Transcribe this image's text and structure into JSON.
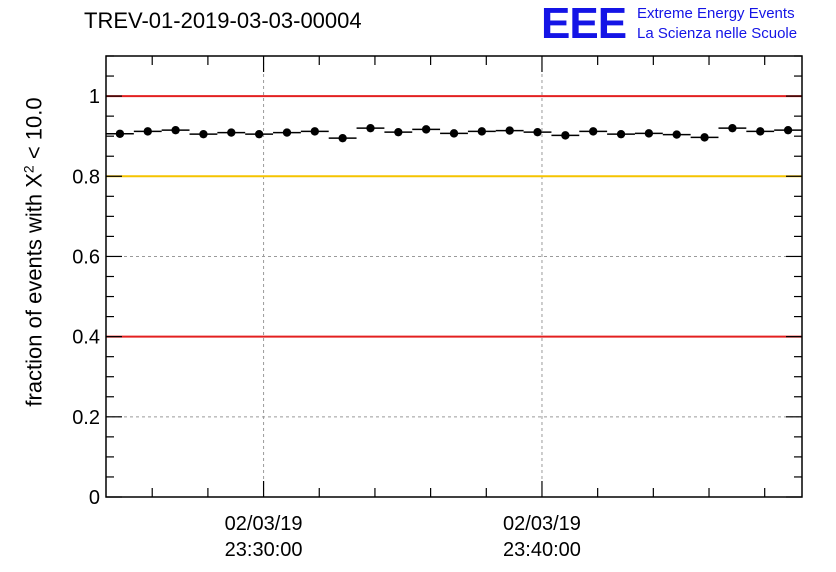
{
  "header": {
    "title": "TREV-01-2019-03-03-00004",
    "logo_mark": "EEE",
    "logo_line1": "Extreme Energy Events",
    "logo_line2": "La Scienza nelle Scuole"
  },
  "axes": {
    "ylabel_prefix": "fraction of events with X",
    "ylabel_sup": "2",
    "ylabel_suffix": " < 10.0"
  },
  "colors": {
    "threshold_red": "#e32020",
    "threshold_yellow": "#f5c400",
    "logo_blue": "#1414e6"
  },
  "chart_data": {
    "type": "scatter",
    "title": "TREV-01-2019-03-03-00004",
    "ylabel": "fraction of events with X^2 < 10.0",
    "ylim": [
      0,
      1.1
    ],
    "xlim_minutes": [
      0,
      25
    ],
    "ytick_values": [
      0,
      0.2,
      0.4,
      0.6,
      0.8,
      1
    ],
    "ytick_labels": [
      "0",
      "0.2",
      "0.4",
      "0.6",
      "0.8",
      "1"
    ],
    "xticks": [
      {
        "position_min": 5.66,
        "date": "02/03/19",
        "time": "23:30:00"
      },
      {
        "position_min": 15.66,
        "date": "02/03/19",
        "time": "23:40:00"
      }
    ],
    "bin_width_min": 1,
    "grid": true,
    "reference_lines": [
      {
        "value": 1.0,
        "color": "red"
      },
      {
        "value": 0.8,
        "color": "yellow"
      },
      {
        "value": 0.4,
        "color": "red"
      }
    ],
    "series": [
      {
        "name": "fraction",
        "x": [
          0.5,
          1.5,
          2.5,
          3.5,
          4.5,
          5.5,
          6.5,
          7.5,
          8.5,
          9.5,
          10.5,
          11.5,
          12.5,
          13.5,
          14.5,
          15.5,
          16.5,
          17.5,
          18.5,
          19.5,
          20.5,
          21.5,
          22.5,
          23.5,
          24.5
        ],
        "values": [
          0.906,
          0.912,
          0.915,
          0.905,
          0.909,
          0.905,
          0.909,
          0.912,
          0.895,
          0.92,
          0.91,
          0.917,
          0.907,
          0.912,
          0.914,
          0.91,
          0.902,
          0.912,
          0.905,
          0.907,
          0.904,
          0.897,
          0.92,
          0.912,
          0.915
        ]
      }
    ]
  }
}
